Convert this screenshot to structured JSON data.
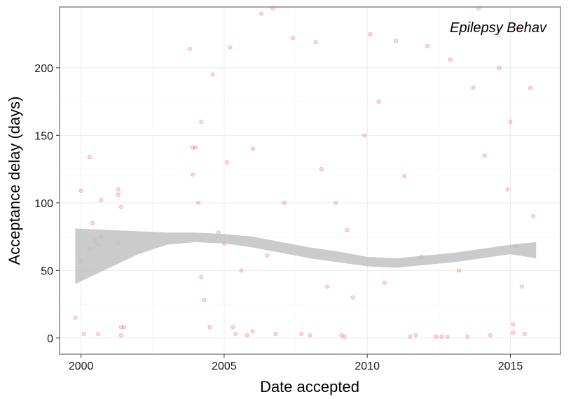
{
  "chart_data": {
    "type": "scatter",
    "title": "",
    "annotation": "Epilepsy Behav",
    "xlabel": "Date accepted",
    "ylabel": "Acceptance delay (days)",
    "x_ticks": [
      2000,
      2005,
      2010,
      2015
    ],
    "y_ticks": [
      0,
      50,
      100,
      150,
      200
    ],
    "xlim": [
      1999.25,
      2016.75
    ],
    "ylim": [
      -12,
      245
    ],
    "grid": true,
    "point_color": "#ff0000",
    "point_opacity": 0.15,
    "band_color": "#bebebe",
    "series": [
      {
        "kind": "scatter",
        "points": [
          [
            1999.8,
            15
          ],
          [
            2000.0,
            57
          ],
          [
            2000.0,
            109
          ],
          [
            2000.1,
            3
          ],
          [
            2000.3,
            66
          ],
          [
            2000.3,
            134
          ],
          [
            2000.4,
            85
          ],
          [
            2000.5,
            72
          ],
          [
            2000.6,
            69
          ],
          [
            2000.6,
            3
          ],
          [
            2000.7,
            102
          ],
          [
            2000.7,
            75
          ],
          [
            2001.3,
            106
          ],
          [
            2001.3,
            110
          ],
          [
            2001.3,
            70
          ],
          [
            2001.4,
            97
          ],
          [
            2001.4,
            8
          ],
          [
            2001.4,
            2
          ],
          [
            2001.5,
            8
          ],
          [
            2003.8,
            214
          ],
          [
            2003.9,
            141
          ],
          [
            2003.9,
            121
          ],
          [
            2004.0,
            141
          ],
          [
            2004.1,
            100
          ],
          [
            2004.2,
            160
          ],
          [
            2004.2,
            45
          ],
          [
            2004.3,
            28
          ],
          [
            2004.5,
            8
          ],
          [
            2004.6,
            195
          ],
          [
            2004.8,
            78
          ],
          [
            2005.0,
            70
          ],
          [
            2005.1,
            130
          ],
          [
            2005.2,
            215
          ],
          [
            2005.3,
            8
          ],
          [
            2005.4,
            3
          ],
          [
            2005.6,
            50
          ],
          [
            2005.8,
            2
          ],
          [
            2006.0,
            140
          ],
          [
            2006.0,
            5
          ],
          [
            2006.3,
            240
          ],
          [
            2006.5,
            61
          ],
          [
            2006.7,
            244
          ],
          [
            2006.8,
            3
          ],
          [
            2007.1,
            100
          ],
          [
            2007.4,
            222
          ],
          [
            2007.7,
            3
          ],
          [
            2008.0,
            2
          ],
          [
            2008.2,
            219
          ],
          [
            2008.4,
            125
          ],
          [
            2008.6,
            38
          ],
          [
            2008.9,
            100
          ],
          [
            2009.1,
            2
          ],
          [
            2009.2,
            1
          ],
          [
            2009.3,
            80
          ],
          [
            2009.5,
            30
          ],
          [
            2009.9,
            150
          ],
          [
            2010.1,
            225
          ],
          [
            2010.4,
            175
          ],
          [
            2010.6,
            41
          ],
          [
            2011.0,
            220
          ],
          [
            2011.3,
            120
          ],
          [
            2011.5,
            1
          ],
          [
            2011.7,
            2
          ],
          [
            2011.9,
            60
          ],
          [
            2012.1,
            216
          ],
          [
            2012.4,
            1
          ],
          [
            2012.6,
            1
          ],
          [
            2012.8,
            1
          ],
          [
            2012.9,
            206
          ],
          [
            2013.2,
            50
          ],
          [
            2013.5,
            1
          ],
          [
            2013.7,
            185
          ],
          [
            2013.9,
            244
          ],
          [
            2014.1,
            135
          ],
          [
            2014.3,
            2
          ],
          [
            2014.6,
            200
          ],
          [
            2014.9,
            110
          ],
          [
            2015.0,
            160
          ],
          [
            2015.1,
            4
          ],
          [
            2015.1,
            10
          ],
          [
            2015.2,
            68
          ],
          [
            2015.3,
            228
          ],
          [
            2015.4,
            38
          ],
          [
            2015.5,
            3
          ],
          [
            2015.7,
            185
          ],
          [
            2015.8,
            90
          ]
        ]
      },
      {
        "kind": "smooth_band",
        "x": [
          1999.8,
          2001.0,
          2002.0,
          2003.0,
          2004.0,
          2005.0,
          2006.0,
          2007.0,
          2008.0,
          2009.0,
          2010.0,
          2011.0,
          2012.0,
          2013.0,
          2014.0,
          2015.0,
          2015.9
        ],
        "upper": [
          81,
          80,
          79,
          78,
          78,
          77,
          75,
          71,
          67,
          64,
          60,
          59,
          61,
          63,
          66,
          69,
          71
        ],
        "lower": [
          40,
          52,
          62,
          69,
          71,
          70,
          67,
          63,
          59,
          56,
          53,
          52,
          54,
          56,
          59,
          62,
          59
        ]
      }
    ]
  }
}
